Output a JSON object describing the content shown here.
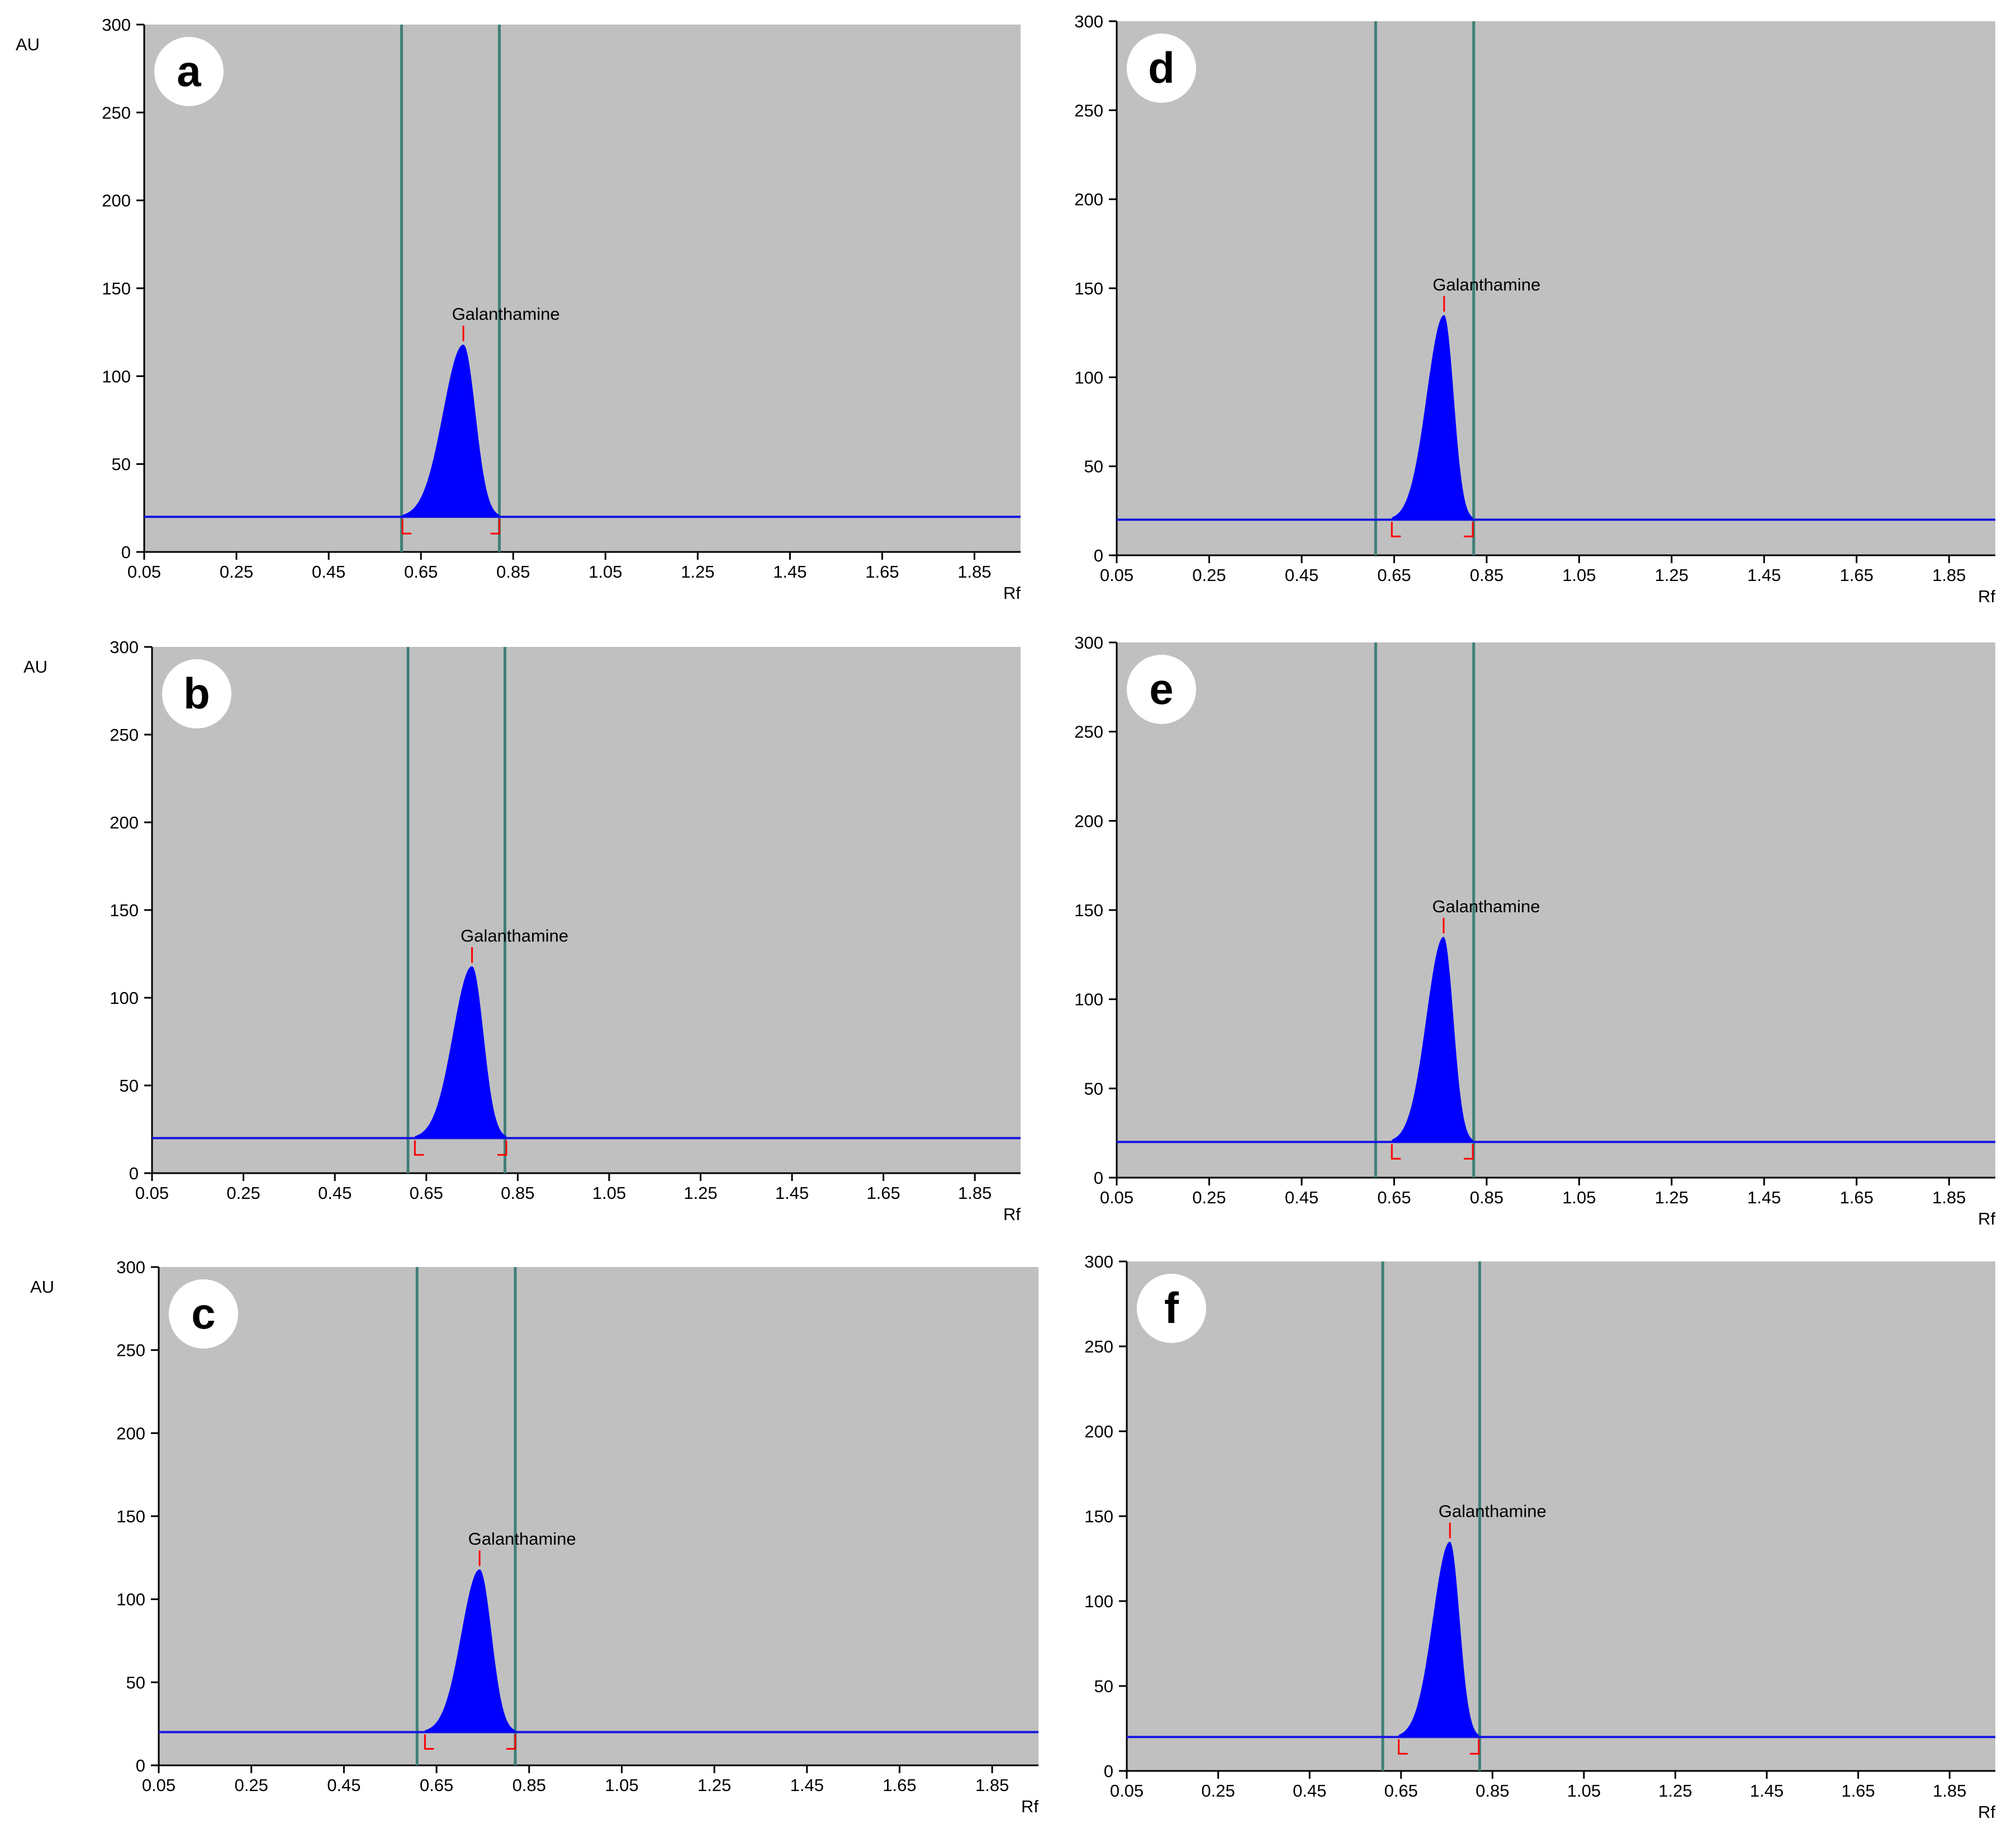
{
  "figure": {
    "chart_data": [
      {
        "panel_label": "a",
        "type": "line",
        "ylabel": "AU",
        "xlabel": "Rf",
        "xlim": [
          0.05,
          1.95
        ],
        "ylim": [
          0,
          300
        ],
        "xticks": [
          "0.05",
          "0.25",
          "0.45",
          "0.65",
          "0.85",
          "1.05",
          "1.25",
          "1.45",
          "1.65",
          "1.85"
        ],
        "yticks": [
          "0",
          "50",
          "100",
          "150",
          "200",
          "250",
          "300"
        ],
        "baseline": 20,
        "window_lines": [
          0.608,
          0.82
        ],
        "peak": {
          "name": "Galanthamine",
          "rf": 0.742,
          "height": 118,
          "start": 0.61,
          "end": 0.82
        }
      },
      {
        "panel_label": "b",
        "type": "line",
        "ylabel": "AU",
        "xlabel": "Rf",
        "xlim": [
          0.05,
          1.95
        ],
        "ylim": [
          0,
          300
        ],
        "xticks": [
          "0.05",
          "0.25",
          "0.45",
          "0.65",
          "0.85",
          "1.05",
          "1.25",
          "1.45",
          "1.65",
          "1.85"
        ],
        "yticks": [
          "0",
          "50",
          "100",
          "150",
          "200",
          "250",
          "300"
        ],
        "baseline": 20,
        "window_lines": [
          0.61,
          0.822
        ],
        "peak": {
          "name": "Galanthamine",
          "rf": 0.75,
          "height": 118,
          "start": 0.625,
          "end": 0.825
        }
      },
      {
        "panel_label": "c",
        "type": "line",
        "ylabel": "AU",
        "xlabel": "Rf",
        "xlim": [
          0.05,
          1.95
        ],
        "ylim": [
          0,
          300
        ],
        "xticks": [
          "0.05",
          "0.25",
          "0.45",
          "0.65",
          "0.85",
          "1.05",
          "1.25",
          "1.45",
          "1.65",
          "1.85"
        ],
        "yticks": [
          "0",
          "50",
          "100",
          "150",
          "200",
          "250",
          "300"
        ],
        "baseline": 20,
        "window_lines": [
          0.608,
          0.82
        ],
        "peak": {
          "name": "Galanthamine",
          "rf": 0.743,
          "height": 118,
          "start": 0.625,
          "end": 0.82
        }
      },
      {
        "panel_label": "d",
        "type": "line",
        "ylabel": "",
        "xlabel": "Rf",
        "xlim": [
          0.05,
          1.95
        ],
        "ylim": [
          0,
          300
        ],
        "xticks": [
          "0.05",
          "0.25",
          "0.45",
          "0.65",
          "0.85",
          "1.05",
          "1.25",
          "1.45",
          "1.65",
          "1.85"
        ],
        "yticks": [
          "0",
          "50",
          "100",
          "150",
          "200",
          "250",
          "300"
        ],
        "baseline": 20,
        "window_lines": [
          0.61,
          0.822
        ],
        "peak": {
          "name": "Galanthamine",
          "rf": 0.758,
          "height": 135,
          "start": 0.645,
          "end": 0.82
        }
      },
      {
        "panel_label": "e",
        "type": "line",
        "ylabel": "",
        "xlabel": "Rf",
        "xlim": [
          0.05,
          1.95
        ],
        "ylim": [
          0,
          300
        ],
        "xticks": [
          "0.05",
          "0.25",
          "0.45",
          "0.65",
          "0.85",
          "1.05",
          "1.25",
          "1.45",
          "1.65",
          "1.85"
        ],
        "yticks": [
          "0",
          "50",
          "100",
          "150",
          "200",
          "250",
          "300"
        ],
        "baseline": 20,
        "window_lines": [
          0.61,
          0.822
        ],
        "peak": {
          "name": "Galanthamine",
          "rf": 0.757,
          "height": 135,
          "start": 0.645,
          "end": 0.82
        }
      },
      {
        "panel_label": "f",
        "type": "line",
        "ylabel": "",
        "xlabel": "Rf",
        "xlim": [
          0.05,
          1.95
        ],
        "ylim": [
          0,
          300
        ],
        "xticks": [
          "0.05",
          "0.25",
          "0.45",
          "0.65",
          "0.85",
          "1.05",
          "1.25",
          "1.45",
          "1.65",
          "1.85"
        ],
        "yticks": [
          "0",
          "50",
          "100",
          "150",
          "200",
          "250",
          "300"
        ],
        "baseline": 20,
        "window_lines": [
          0.61,
          0.822
        ],
        "peak": {
          "name": "Galanthamine",
          "rf": 0.757,
          "height": 135,
          "start": 0.645,
          "end": 0.82
        }
      }
    ],
    "colors": {
      "plot_background": "#c0c0c0",
      "window_line": "#3f7f78",
      "baseline": "#1515e0",
      "peak_fill": "#0000ff",
      "peak_marker": "#ff0000",
      "label_badge": "#ffffff",
      "text": "#000000"
    }
  }
}
